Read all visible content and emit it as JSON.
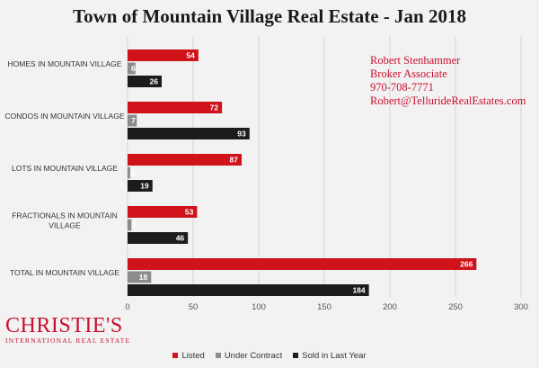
{
  "chart_data": {
    "type": "bar",
    "orientation": "horizontal",
    "title": "Town of Mountain Village Real Estate - Jan 2018",
    "categories": [
      [
        "HOMES IN MOUNTAIN VILLAGE"
      ],
      [
        "CONDOS IN MOUNTAIN VILLAGE"
      ],
      [
        "LOTS IN MOUNTAIN VILLAGE"
      ],
      [
        "FRACTIONALS IN MOUNTAIN",
        "VILLAGE"
      ],
      [
        "TOTAL IN MOUNTAIN VILLAGE"
      ]
    ],
    "series": [
      {
        "name": "Listed",
        "color": "#d0121b",
        "values": [
          54,
          72,
          87,
          53,
          266
        ]
      },
      {
        "name": "Under Contract",
        "color": "#8c8c8c",
        "values": [
          6,
          7,
          2,
          3,
          18
        ]
      },
      {
        "name": "Sold in Last Year",
        "color": "#1c1c1c",
        "values": [
          26,
          93,
          19,
          46,
          184
        ]
      }
    ],
    "xlim": [
      0,
      300
    ],
    "xticks": [
      0,
      50,
      100,
      150,
      200,
      250,
      300
    ],
    "grid": true,
    "legend_position": "bottom"
  },
  "contact": {
    "name": "Robert Stenhammer",
    "role": "Broker Associate",
    "phone": "970-708-7771",
    "email": "Robert@TellurideRealEstates.com"
  },
  "logo": {
    "brand": "CHRISTIE'S",
    "tagline": "INTERNATIONAL REAL ESTATE"
  }
}
